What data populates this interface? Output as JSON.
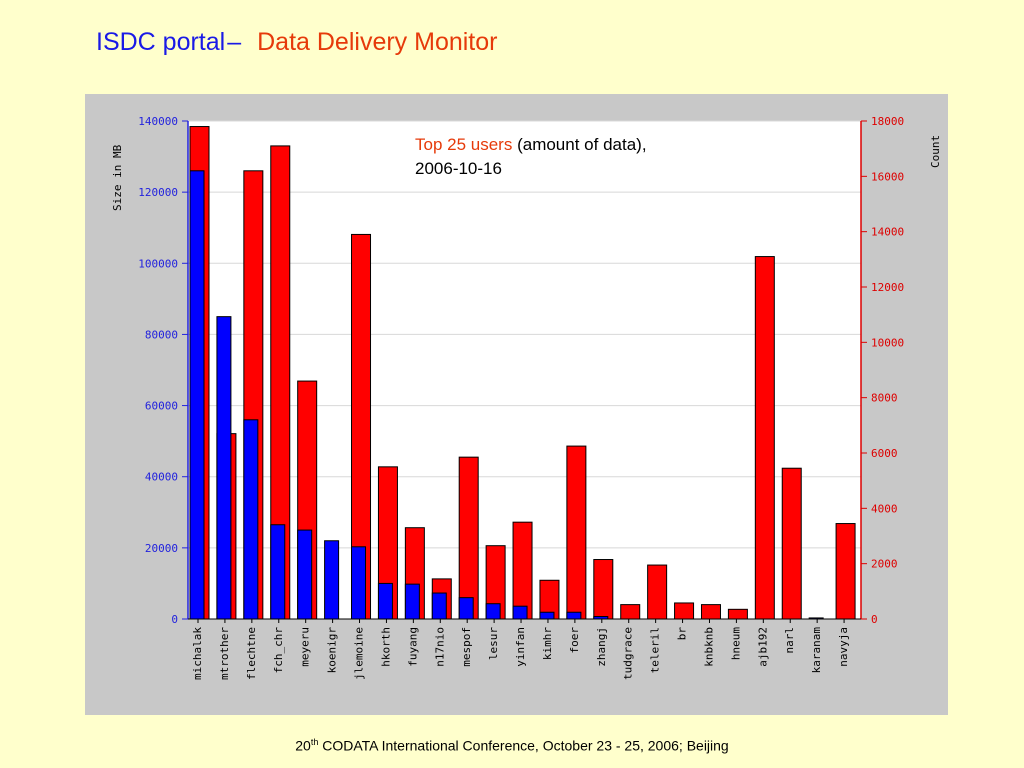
{
  "slide": {
    "title_part1": "ISDC portal",
    "title_dash": "–",
    "title_part2": "Data Delivery Monitor",
    "annotation_highlight": "Top 25 users",
    "annotation_rest": "(amount of data),",
    "annotation_date": "2006-10-16",
    "footer_number": "20",
    "footer_sup": "th",
    "footer_text": "CODATA International Conference, October 23 - 25, 2006; Beijing"
  },
  "colors": {
    "size_bar": "#0000FF",
    "count_bar": "#FF0000",
    "panel_bg": "#C8C8C8",
    "plot_bg": "#FFFFFF",
    "left_axis": "#2222DD",
    "right_axis": "#DD0000"
  },
  "chart_data": {
    "type": "bar",
    "categories": [
      "michalak",
      "mtrother",
      "flechtne",
      "fch_chr",
      "meyeru",
      "koenigr",
      "jlemoine",
      "hkorth",
      "fuyang",
      "n17nio",
      "mespof",
      "lesur",
      "yinfan",
      "kimhr",
      "foer",
      "zhangj",
      "tudgrace",
      "teleril",
      "br",
      "knbknb",
      "hneum",
      "ajb192",
      "narl",
      "karanam",
      "navyja"
    ],
    "series": [
      {
        "axis": "left",
        "values": [
          126000,
          85000,
          56000,
          26500,
          25000,
          22000,
          20300,
          10000,
          9800,
          7300,
          6000,
          4300,
          3600,
          1900,
          1900,
          700,
          0,
          0,
          0,
          0,
          0,
          0,
          0,
          300,
          0
        ]
      },
      {
        "axis": "right",
        "values": [
          17800,
          6700,
          16200,
          17100,
          8600,
          0,
          13900,
          5500,
          3300,
          1450,
          5850,
          2650,
          3500,
          1400,
          6250,
          2150,
          520,
          1950,
          580,
          520,
          350,
          13100,
          5450,
          0,
          3450
        ]
      }
    ],
    "ylabel": "Size in MB",
    "y2label": "Count",
    "ylim": [
      0,
      140000
    ],
    "y2lim": [
      0,
      18000
    ],
    "yticks": [
      0,
      20000,
      40000,
      60000,
      80000,
      100000,
      120000,
      140000
    ],
    "y2ticks": [
      0,
      2000,
      4000,
      6000,
      8000,
      10000,
      12000,
      14000,
      16000,
      18000
    ],
    "grid": true,
    "legend": "none"
  }
}
